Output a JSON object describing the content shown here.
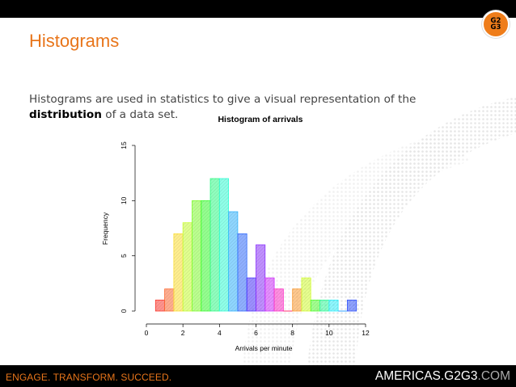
{
  "slide": {
    "title": "Histograms",
    "intro_before": "Histograms are used in statistics to give a visual representation of the ",
    "intro_emphasis": "distribution",
    "intro_after": " of a data set."
  },
  "logo": {
    "line1": "G2",
    "line2": "G3"
  },
  "footer": {
    "tagline": "ENGAGE. TRANSFORM. SUCCEED.",
    "site_main": "AMERICAS.G2G3",
    "site_suffix": ".COM"
  },
  "chart_data": {
    "type": "bar",
    "title": "Histogram of arrivals",
    "xlabel": "Arrivals per minute",
    "ylabel": "Frequency",
    "xlim": [
      0,
      12
    ],
    "ylim": [
      0,
      15
    ],
    "xticks": [
      "0",
      "2",
      "4",
      "6",
      "8",
      "10",
      "12"
    ],
    "yticks": [
      "0",
      "5",
      "10",
      "15"
    ],
    "bin_width": 0.5,
    "bin_starts": [
      0.5,
      1.0,
      1.5,
      2.0,
      2.5,
      3.0,
      3.5,
      4.0,
      4.5,
      5.0,
      5.5,
      6.0,
      6.5,
      7.0,
      7.5,
      8.0,
      8.5,
      9.0,
      9.5,
      10.0,
      10.5,
      11.0
    ],
    "values": [
      1,
      2,
      7,
      8,
      10,
      10,
      12,
      12,
      9,
      7,
      3,
      6,
      3,
      2,
      0,
      2,
      3,
      1,
      1,
      1,
      0,
      1
    ],
    "colors": [
      "#ff3b30",
      "#ff6a33",
      "#ffe033",
      "#c9ff33",
      "#84ff33",
      "#3dff33",
      "#33ff88",
      "#33ffd6",
      "#33b5ff",
      "#336dff",
      "#4a33ff",
      "#8c33ff",
      "#d233ff",
      "#ff33c8",
      "#ff3370",
      "#ff9d33",
      "#d4ff33",
      "#55ff33",
      "#33ff9d",
      "#33f2ff",
      "#33a4ff",
      "#3355ff"
    ],
    "grid": false
  }
}
